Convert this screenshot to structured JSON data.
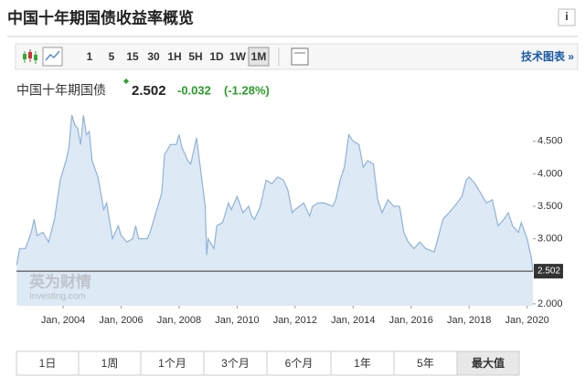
{
  "header": {
    "title": "中国十年期国债收益率概览",
    "info_icon": "i"
  },
  "toolbar": {
    "intervals": [
      "1",
      "5",
      "15",
      "30",
      "1H",
      "5H",
      "1D",
      "1W",
      "1M"
    ],
    "selected": 8,
    "tech_link": "技术图表 »"
  },
  "quote": {
    "name": "中国十年期国债",
    "price": 2.502,
    "change": -0.032,
    "change_pct": "(-1.28%)"
  },
  "watermark": {
    "brand": "英为财情",
    "site": "Investing.com"
  },
  "chart_data": {
    "type": "area",
    "color": "#8fb3d6",
    "fill": "#dde9f5",
    "grid": false,
    "x": [
      2002.4,
      2002.5,
      2002.7,
      2002.9,
      2003.0,
      2003.1,
      2003.3,
      2003.5,
      2003.7,
      2003.9,
      2004.1,
      2004.2,
      2004.3,
      2004.4,
      2004.5,
      2004.6,
      2004.7,
      2004.8,
      2004.9,
      2005.0,
      2005.2,
      2005.4,
      2005.5,
      2005.7,
      2005.9,
      2006.0,
      2006.2,
      2006.4,
      2006.5,
      2006.6,
      2006.9,
      2007.0,
      2007.2,
      2007.4,
      2007.5,
      2007.7,
      2007.9,
      2008.0,
      2008.1,
      2008.3,
      2008.4,
      2008.6,
      2008.7,
      2008.9,
      2008.95,
      2009.0,
      2009.2,
      2009.3,
      2009.5,
      2009.7,
      2009.8,
      2010.0,
      2010.2,
      2010.4,
      2010.5,
      2010.6,
      2010.8,
      2011.0,
      2011.2,
      2011.4,
      2011.6,
      2011.75,
      2011.9,
      2012.0,
      2012.3,
      2012.5,
      2012.6,
      2012.8,
      2013.0,
      2013.3,
      2013.4,
      2013.55,
      2013.7,
      2013.85,
      2014.0,
      2014.2,
      2014.35,
      2014.5,
      2014.7,
      2014.85,
      2015.0,
      2015.2,
      2015.4,
      2015.6,
      2015.75,
      2015.9,
      2016.1,
      2016.3,
      2016.5,
      2016.8,
      2016.95,
      2017.1,
      2017.3,
      2017.5,
      2017.75,
      2017.9,
      2018.0,
      2018.2,
      2018.4,
      2018.6,
      2018.8,
      2019.0,
      2019.2,
      2019.35,
      2019.5,
      2019.7,
      2019.8,
      2020.0,
      2020.15,
      2020.2
    ],
    "values": [
      2.6,
      2.85,
      2.85,
      3.1,
      3.3,
      3.05,
      3.1,
      2.95,
      3.3,
      3.9,
      4.2,
      4.4,
      4.9,
      4.75,
      4.7,
      4.45,
      4.9,
      4.6,
      4.65,
      4.2,
      3.95,
      3.45,
      3.55,
      3.0,
      3.2,
      3.05,
      2.95,
      3.0,
      3.2,
      3.0,
      3.0,
      3.1,
      3.4,
      3.7,
      4.3,
      4.45,
      4.45,
      4.6,
      4.4,
      4.2,
      4.15,
      4.55,
      4.2,
      3.5,
      2.75,
      3.0,
      2.85,
      3.2,
      3.25,
      3.55,
      3.45,
      3.65,
      3.4,
      3.5,
      3.35,
      3.3,
      3.5,
      3.9,
      3.85,
      3.95,
      3.9,
      3.75,
      3.4,
      3.45,
      3.55,
      3.35,
      3.5,
      3.55,
      3.55,
      3.5,
      3.6,
      3.9,
      4.1,
      4.6,
      4.5,
      4.45,
      4.1,
      4.2,
      4.15,
      3.6,
      3.4,
      3.6,
      3.5,
      3.5,
      3.1,
      2.95,
      2.85,
      2.95,
      2.85,
      2.8,
      3.05,
      3.3,
      3.4,
      3.5,
      3.65,
      3.9,
      3.95,
      3.85,
      3.7,
      3.55,
      3.6,
      3.2,
      3.3,
      3.4,
      3.2,
      3.1,
      3.25,
      3.0,
      2.7,
      2.502
    ],
    "xlim": [
      2002.39,
      2020.2
    ],
    "ylim": [
      1.97,
      5.1
    ],
    "xticks": [
      {
        "value": 2004,
        "label": "Jan, 2004"
      },
      {
        "value": 2006,
        "label": "Jan, 2006"
      },
      {
        "value": 2008,
        "label": "Jan, 2008"
      },
      {
        "value": 2010,
        "label": "Jan, 2010"
      },
      {
        "value": 2012,
        "label": "Jan, 2012"
      },
      {
        "value": 2014,
        "label": "Jan, 2014"
      },
      {
        "value": 2016,
        "label": "Jan, 2016"
      },
      {
        "value": 2018,
        "label": "Jan, 2018"
      },
      {
        "value": 2020,
        "label": "Jan, 2020"
      }
    ],
    "yticks": [
      {
        "value": 2,
        "label": "2.000"
      },
      {
        "value": 3,
        "label": "3.000"
      },
      {
        "value": 3.5,
        "label": "3.500"
      },
      {
        "value": 4,
        "label": "4.000"
      },
      {
        "value": 4.5,
        "label": "4.500"
      }
    ]
  },
  "ranges": {
    "items": [
      "1日",
      "1周",
      "1个月",
      "3个月",
      "6个月",
      "1年",
      "5年",
      "最大值"
    ],
    "selected": 7
  }
}
